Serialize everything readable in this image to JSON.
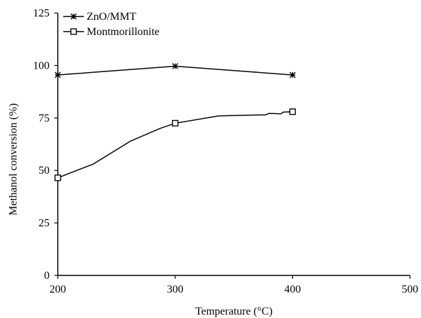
{
  "chart_data": {
    "type": "line",
    "xlabel": "Temperature (°C)",
    "ylabel": "Methanol conversion (%)",
    "xlim": [
      200,
      500
    ],
    "ylim": [
      0,
      125
    ],
    "xticks": [
      "200",
      "300",
      "400",
      "500"
    ],
    "yticks": [
      "0",
      "25",
      "50",
      "75",
      "100",
      "125"
    ],
    "grid": false,
    "legend_position": "top-left",
    "series": [
      {
        "name": "ZnO/MMT",
        "marker": "asterisk",
        "color": "#000000",
        "points": [
          [
            200,
            95.5
          ],
          [
            300,
            99.7
          ],
          [
            400,
            95.5
          ]
        ]
      },
      {
        "name": "Montmorillonite",
        "marker": "open-square",
        "color": "#000000",
        "points": [
          [
            200,
            46.5
          ],
          [
            300,
            72.5
          ],
          [
            400,
            78
          ]
        ],
        "line": [
          [
            200,
            46.5
          ],
          [
            230,
            53
          ],
          [
            262,
            64
          ],
          [
            287,
            70
          ],
          [
            300,
            72.5
          ],
          [
            337,
            76
          ],
          [
            377,
            76.5
          ],
          [
            380,
            77.2
          ],
          [
            390,
            77
          ],
          [
            392,
            77.8
          ],
          [
            400,
            78
          ]
        ]
      }
    ]
  }
}
